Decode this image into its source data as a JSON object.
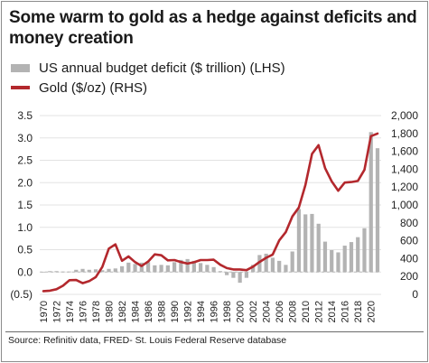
{
  "chart_data": {
    "type": "bar+line",
    "title": "Some warm to gold as a hedge against deficits and money creation",
    "source": "Source: Refinitiv data, FRED- St. Louis Federal Reserve database",
    "years": [
      1970,
      1971,
      1972,
      1973,
      1974,
      1975,
      1976,
      1977,
      1978,
      1979,
      1980,
      1981,
      1982,
      1983,
      1984,
      1985,
      1986,
      1987,
      1988,
      1989,
      1990,
      1991,
      1992,
      1993,
      1994,
      1995,
      1996,
      1997,
      1998,
      1999,
      2000,
      2001,
      2002,
      2003,
      2004,
      2005,
      2006,
      2007,
      2008,
      2009,
      2010,
      2011,
      2012,
      2013,
      2014,
      2015,
      2016,
      2017,
      2018,
      2019,
      2020,
      2021
    ],
    "x_tick_labels": [
      "1970",
      "1972",
      "1974",
      "1976",
      "1978",
      "1980",
      "1982",
      "1984",
      "1986",
      "1988",
      "1990",
      "1992",
      "1994",
      "1996",
      "1998",
      "2000",
      "2002",
      "2004",
      "2006",
      "2008",
      "2010",
      "2012",
      "2014",
      "2016",
      "2018",
      "2020"
    ],
    "series": [
      {
        "name": "US annual budget deficit ($ trillion) (LHS)",
        "kind": "bar",
        "axis": "left",
        "color": "#b3b3b3",
        "values": [
          0.0,
          0.02,
          0.02,
          0.01,
          0.01,
          0.05,
          0.07,
          0.05,
          0.06,
          0.04,
          0.07,
          0.08,
          0.13,
          0.21,
          0.18,
          0.21,
          0.22,
          0.15,
          0.16,
          0.15,
          0.22,
          0.27,
          0.29,
          0.25,
          0.2,
          0.16,
          0.11,
          0.02,
          -0.07,
          -0.13,
          -0.24,
          -0.13,
          0.16,
          0.38,
          0.41,
          0.32,
          0.25,
          0.16,
          0.46,
          1.41,
          1.29,
          1.3,
          1.08,
          0.68,
          0.49,
          0.44,
          0.59,
          0.67,
          0.78,
          0.98,
          3.13,
          2.77
        ]
      },
      {
        "name": "Gold ($/oz) (RHS)",
        "kind": "line",
        "axis": "right",
        "color": "#b3282d",
        "values": [
          36,
          41,
          58,
          97,
          159,
          161,
          125,
          148,
          193,
          307,
          512,
          560,
          376,
          424,
          361,
          317,
          368,
          447,
          437,
          381,
          384,
          362,
          344,
          360,
          384,
          384,
          388,
          331,
          294,
          279,
          279,
          271,
          310,
          363,
          409,
          445,
          604,
          696,
          872,
          972,
          1225,
          1572,
          1669,
          1411,
          1266,
          1160,
          1251,
          1257,
          1269,
          1393,
          1770,
          1799
        ]
      }
    ],
    "y_left": {
      "ticks": [
        "(0.5)",
        "0.0",
        "0.5",
        "1.0",
        "1.5",
        "2.0",
        "2.5",
        "3.0",
        "3.5"
      ],
      "tick_values": [
        -0.5,
        0,
        0.5,
        1,
        1.5,
        2,
        2.5,
        3,
        3.5
      ],
      "ylim": [
        -0.5,
        3.5
      ]
    },
    "y_right": {
      "ticks": [
        "0",
        "200",
        "400",
        "600",
        "800",
        "1,000",
        "1,200",
        "1,400",
        "1,600",
        "1,800",
        "2,000"
      ],
      "tick_values": [
        0,
        200,
        400,
        600,
        800,
        1000,
        1200,
        1400,
        1600,
        1800,
        2000
      ],
      "ylim": [
        0,
        2000
      ]
    },
    "grid": true,
    "legend_position": "top-left"
  }
}
